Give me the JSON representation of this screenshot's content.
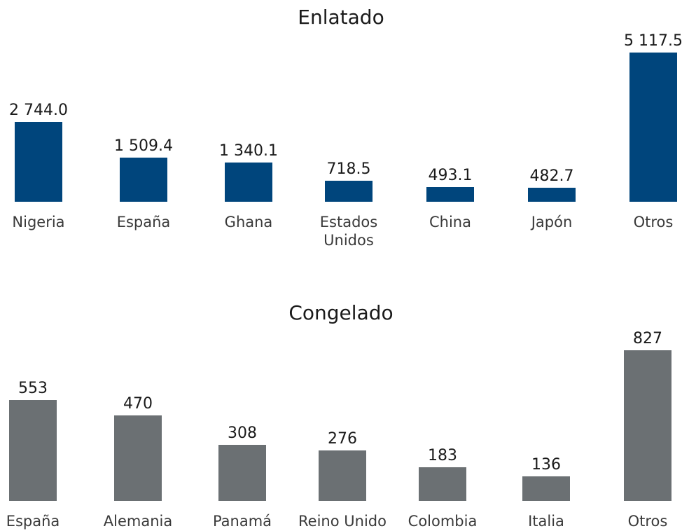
{
  "chart_data": [
    {
      "type": "bar",
      "title": "Enlatado",
      "categories": [
        "Nigeria",
        "España",
        "Ghana",
        "Estados Unidos",
        "China",
        "Japón",
        "Otros"
      ],
      "values": [
        2744.0,
        1509.4,
        1340.1,
        718.5,
        493.1,
        482.7,
        5117.5
      ],
      "value_labels": [
        "2 744.0",
        "1 509.4",
        "1 340.1",
        "718.5",
        "493.1",
        "482.7",
        "5 117.5"
      ],
      "color": "#00457c"
    },
    {
      "type": "bar",
      "title": "Congelado",
      "categories": [
        "España",
        "Alemania",
        "Panamá",
        "Reino Unido",
        "Colombia",
        "Italia",
        "Otros"
      ],
      "values": [
        553,
        470,
        308,
        276,
        183,
        136,
        827
      ],
      "color": "#6b7073"
    }
  ]
}
